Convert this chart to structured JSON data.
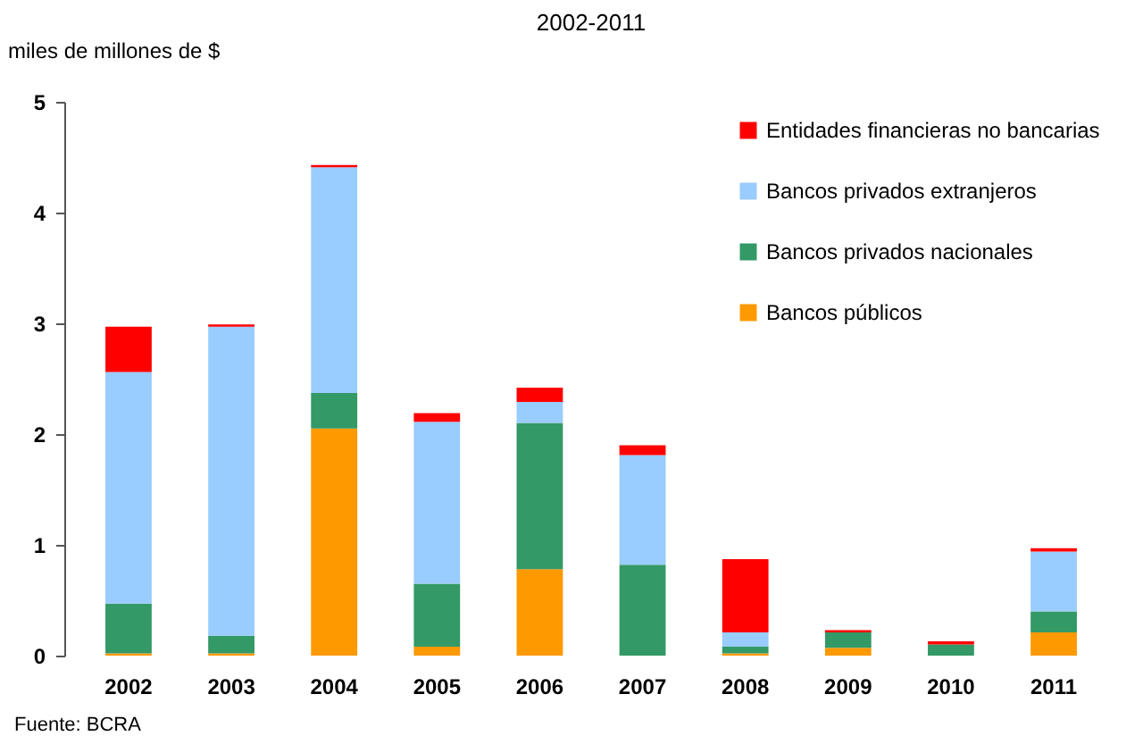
{
  "chart_data": {
    "type": "bar",
    "title": "2002-2011",
    "ylabel": "miles de millones de $",
    "stacked": true,
    "categories": [
      "2002",
      "2003",
      "2004",
      "2005",
      "2006",
      "2007",
      "2008",
      "2009",
      "2010",
      "2011"
    ],
    "series": [
      {
        "name": "Bancos públicos",
        "color": "#ff9900",
        "values": [
          0.02,
          0.02,
          2.05,
          0.08,
          0.78,
          0,
          0.02,
          0.07,
          0,
          0.21
        ]
      },
      {
        "name": "Bancos privados nacionales",
        "color": "#339966",
        "values": [
          0.45,
          0.16,
          0.32,
          0.57,
          1.32,
          0.82,
          0.06,
          0.14,
          0.1,
          0.19
        ]
      },
      {
        "name": "Bancos privados extranjeros",
        "color": "#99ccff",
        "values": [
          2.09,
          2.79,
          2.04,
          1.46,
          0.19,
          0.99,
          0.13,
          0,
          0,
          0.54
        ]
      },
      {
        "name": "Entidades financieras no bancarias",
        "color": "#ff0000",
        "values": [
          0.41,
          0.02,
          0.02,
          0.08,
          0.13,
          0.09,
          0.66,
          0.02,
          0.03,
          0.03
        ]
      }
    ],
    "ylim": [
      0,
      5
    ],
    "yticks": [
      0,
      1,
      2,
      3,
      4,
      5
    ],
    "grid": false,
    "legend": "top right",
    "annotations": [
      "Fuente: BCRA"
    ]
  }
}
